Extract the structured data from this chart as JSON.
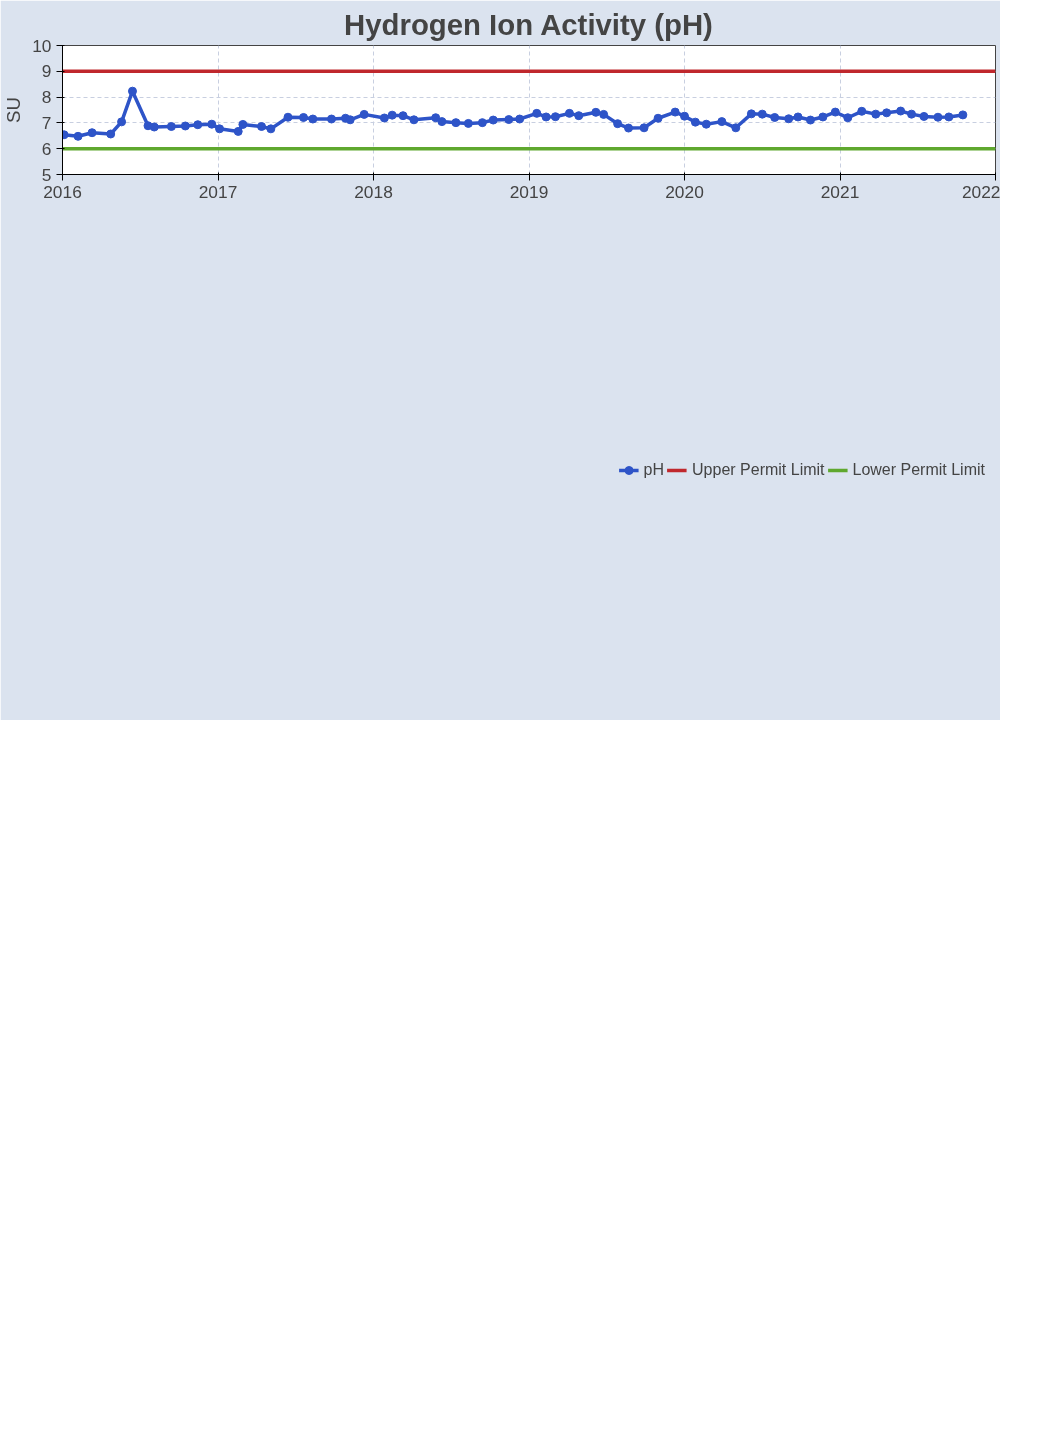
{
  "chart_data": {
    "type": "line",
    "title": "Hydrogen Ion Activity (pH)",
    "ylabel": "SU",
    "xlim": [
      2016,
      2022
    ],
    "xticks": [
      2016,
      2017,
      2018,
      2019,
      2020,
      2021,
      2022
    ],
    "ylim": [
      5,
      10
    ],
    "yticks": [
      5,
      6,
      7,
      8,
      9,
      10
    ],
    "grid": true,
    "legend": "bottom",
    "series": [
      {
        "name": "pH",
        "color": "#2e54c8",
        "marker": "circle",
        "x": [
          2016.01,
          2016.1,
          2016.19,
          2016.31,
          2016.38,
          2016.45,
          2016.55,
          2016.59,
          2016.7,
          2016.79,
          2016.87,
          2016.96,
          2017.01,
          2017.13,
          2017.16,
          2017.28,
          2017.34,
          2017.45,
          2017.55,
          2017.61,
          2017.73,
          2017.82,
          2017.85,
          2017.94,
          2018.07,
          2018.12,
          2018.19,
          2018.26,
          2018.4,
          2018.44,
          2018.53,
          2018.61,
          2018.7,
          2018.77,
          2018.87,
          2018.94,
          2019.05,
          2019.11,
          2019.17,
          2019.26,
          2019.32,
          2019.43,
          2019.48,
          2019.57,
          2019.64,
          2019.74,
          2019.83,
          2019.94,
          2020.0,
          2020.07,
          2020.14,
          2020.24,
          2020.33,
          2020.43,
          2020.5,
          2020.58,
          2020.67,
          2020.73,
          2020.81,
          2020.89,
          2020.97,
          2021.05,
          2021.14,
          2021.23,
          2021.3,
          2021.39,
          2021.46,
          2021.54,
          2021.63,
          2021.7,
          2021.79
        ],
        "values": [
          6.54,
          6.48,
          6.62,
          6.57,
          7.04,
          8.23,
          6.89,
          6.84,
          6.86,
          6.88,
          6.93,
          6.95,
          6.77,
          6.67,
          6.94,
          6.86,
          6.77,
          7.22,
          7.21,
          7.15,
          7.15,
          7.18,
          7.12,
          7.33,
          7.19,
          7.3,
          7.28,
          7.12,
          7.2,
          7.05,
          7.01,
          6.98,
          7.01,
          7.11,
          7.13,
          7.15,
          7.37,
          7.23,
          7.24,
          7.37,
          7.28,
          7.41,
          7.33,
          6.97,
          6.8,
          6.81,
          7.18,
          7.42,
          7.26,
          7.03,
          6.95,
          7.05,
          6.81,
          7.35,
          7.34,
          7.21,
          7.16,
          7.23,
          7.11,
          7.23,
          7.42,
          7.2,
          7.45,
          7.34,
          7.39,
          7.46,
          7.34,
          7.25,
          7.22,
          7.23,
          7.31
        ]
      },
      {
        "name": "Upper Permit Limit",
        "color": "#c0282d",
        "marker": "none",
        "x": [
          2016,
          2022
        ],
        "values": [
          9,
          9
        ]
      },
      {
        "name": "Lower Permit Limit",
        "color": "#5fa82e",
        "marker": "none",
        "x": [
          2016,
          2022
        ],
        "values": [
          6,
          6
        ]
      }
    ]
  }
}
